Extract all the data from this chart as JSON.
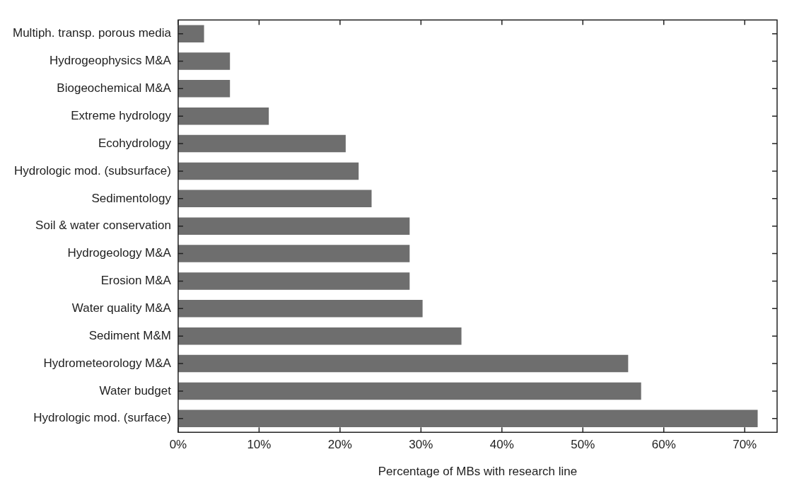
{
  "chart_data": {
    "type": "bar",
    "orientation": "horizontal",
    "xlabel": "Percentage of MBs with research line",
    "categories": [
      "Multiph. transp. porous media",
      "Hydrogeophysics M&A",
      "Biogeochemical M&A",
      "Extreme hydrology",
      "Ecohydrology",
      "Hydrologic mod. (subsurface)",
      "Sedimentology",
      "Soil & water conservation",
      "Hydrogeology M&A",
      "Erosion M&A",
      "Water quality M&A",
      "Sediment M&M",
      "Hydrometeorology M&A",
      "Water budget",
      "Hydrologic mod. (surface)"
    ],
    "values": [
      3.2,
      6.4,
      6.4,
      11.2,
      20.7,
      22.3,
      23.9,
      28.6,
      28.6,
      28.6,
      30.2,
      35.0,
      55.6,
      57.2,
      71.6
    ],
    "color": "#6e6e6e",
    "xlim": [
      0,
      74
    ],
    "xticks": [
      {
        "value": 0,
        "label": "0%"
      },
      {
        "value": 10,
        "label": "10%"
      },
      {
        "value": 20,
        "label": "20%"
      },
      {
        "value": 30,
        "label": "30%"
      },
      {
        "value": 40,
        "label": "40%"
      },
      {
        "value": 50,
        "label": "50%"
      },
      {
        "value": 60,
        "label": "60%"
      },
      {
        "value": 70,
        "label": "70%"
      }
    ],
    "grid": false,
    "legend": false
  }
}
